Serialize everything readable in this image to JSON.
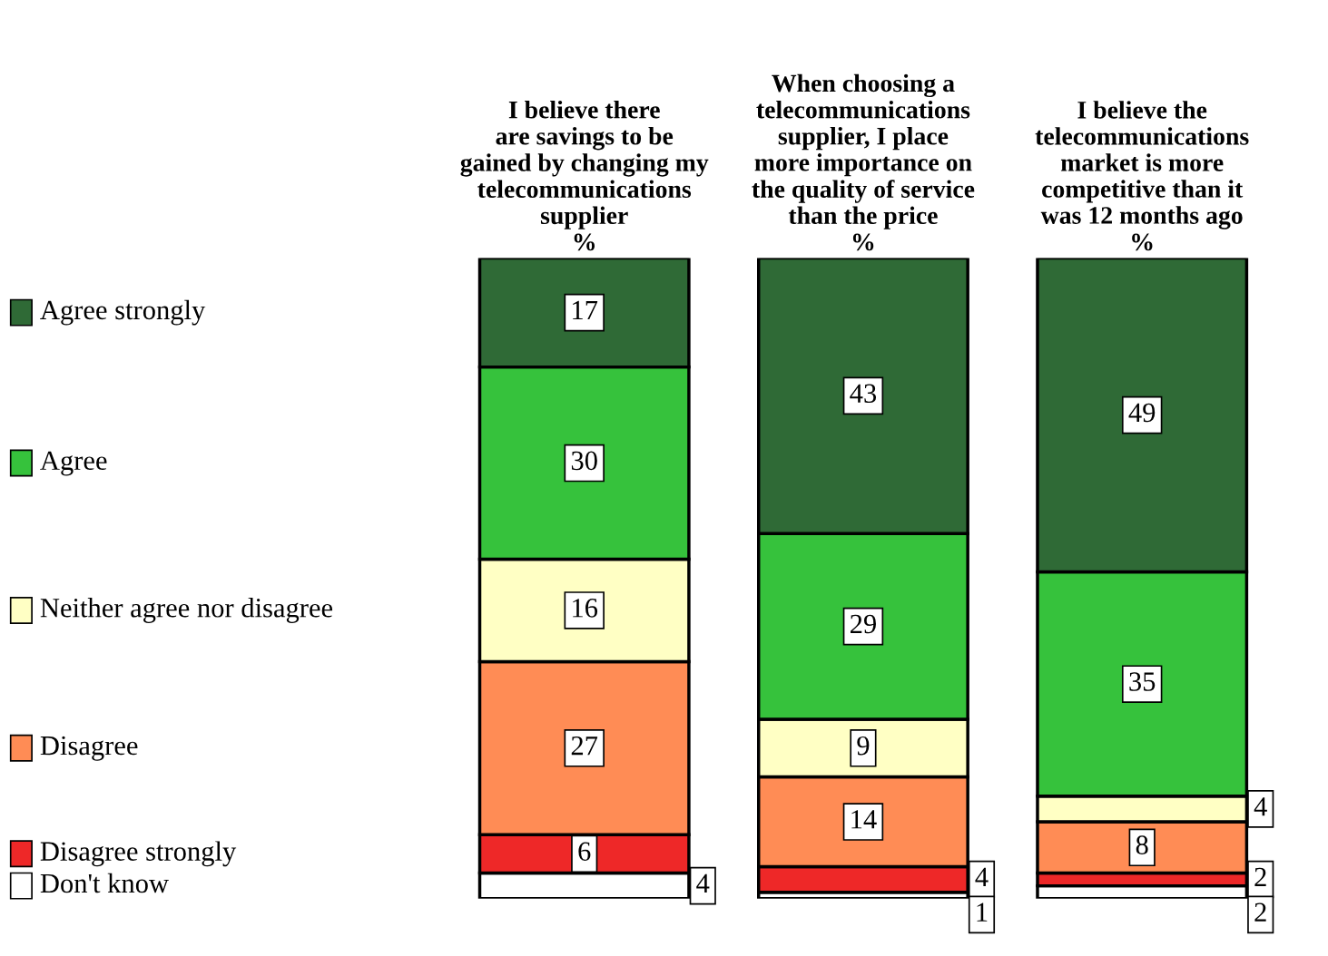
{
  "chart_data": {
    "type": "bar",
    "stacked": true,
    "categories": [
      "I believe there\nare savings to be\ngained by changing my\ntelecommunications\nsupplier\n%",
      "When choosing a\ntelecommunications\nsupplier, I place\nmore importance on\nthe quality of service\nthan the price\n%",
      "I believe the\ntelecommunications\nmarket is more\ncompetitive than it\nwas 12 months ago\n%"
    ],
    "series": [
      {
        "name": "Don't know",
        "color": "#ffffff",
        "values": [
          4,
          1,
          2
        ]
      },
      {
        "name": "Disagree strongly",
        "color": "#ee2828",
        "values": [
          6,
          4,
          2
        ]
      },
      {
        "name": "Disagree",
        "color": "#ff8c55",
        "values": [
          27,
          14,
          8
        ]
      },
      {
        "name": "Neither agree nor disagree",
        "color": "#ffffc4",
        "values": [
          16,
          9,
          4
        ]
      },
      {
        "name": "Agree",
        "color": "#36c23c",
        "values": [
          30,
          29,
          35
        ]
      },
      {
        "name": "Agree strongly",
        "color": "#2f6a36",
        "values": [
          17,
          43,
          49
        ]
      }
    ],
    "ylim": [
      0,
      100
    ],
    "tick_labels": "x",
    "data_labels": true,
    "grid": false,
    "legend": "left"
  }
}
